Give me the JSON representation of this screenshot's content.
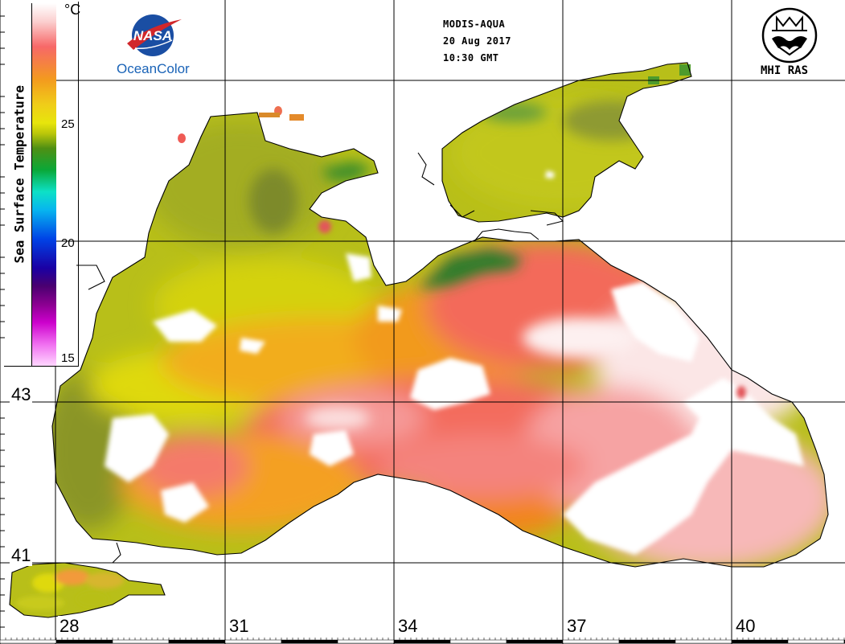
{
  "header": {
    "satellite": "MODIS-AQUA",
    "date": "20 Aug 2017",
    "time": "10:30 GMT"
  },
  "logos": {
    "nasa_text": "NASA",
    "oceancolor": "OceanColor",
    "mhi": "MHI RAS"
  },
  "colorbar": {
    "title": "Sea Surface Temperature",
    "unit": "°C",
    "ticks": [
      "25",
      "20",
      "15"
    ]
  },
  "grid": {
    "lat_labels": [
      "43",
      "41"
    ],
    "lon_labels": [
      "28",
      "31",
      "34",
      "37",
      "40"
    ]
  },
  "colors": {
    "coastline": "#000000",
    "land": "#ffffff",
    "cloud": "#ffffff",
    "nasa_blue": "#1a63b7"
  }
}
